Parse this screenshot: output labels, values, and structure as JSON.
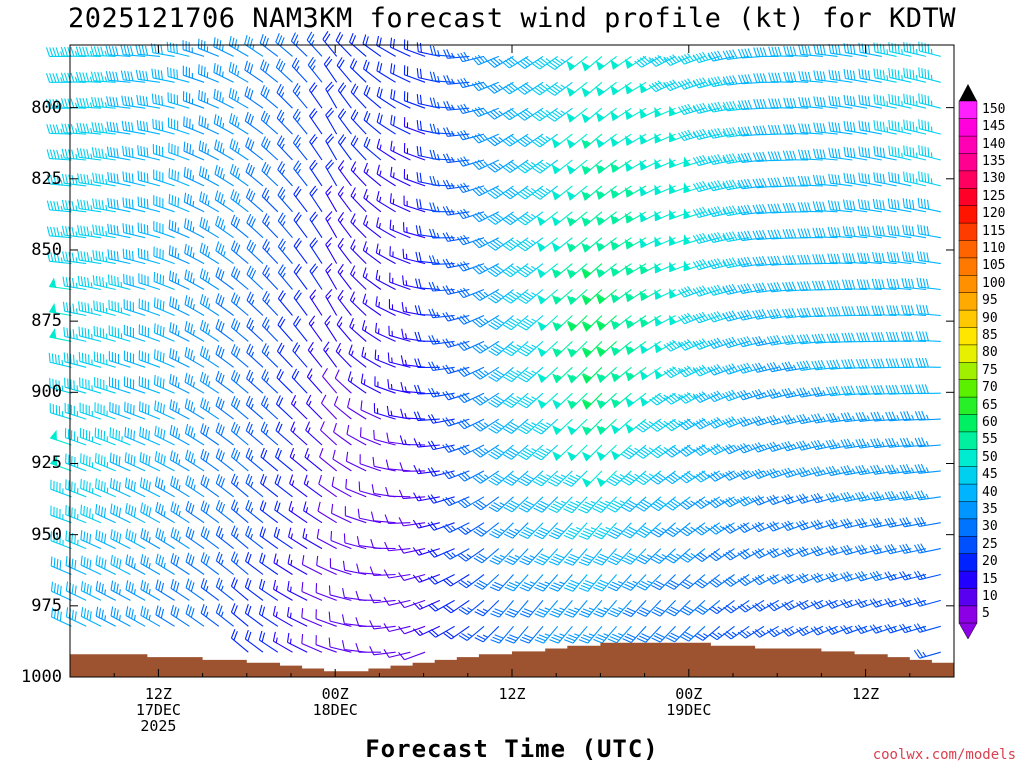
{
  "chart_data": {
    "type": "wind_barb_time_height",
    "title": "2025121706 NAM3KM forecast wind profile (kt) for KDTW",
    "xlabel": "Forecast Time (UTC)",
    "ylabel": "",
    "ylim": [
      1000,
      778
    ],
    "y_ticks": [
      "800",
      "825",
      "850",
      "875",
      "900",
      "925",
      "950",
      "975",
      "1000"
    ],
    "x_ticks": [
      {
        "hour": 6,
        "line1": "12Z",
        "line2": "17DEC",
        "line3": "2025"
      },
      {
        "hour": 18,
        "line1": "00Z",
        "line2": "18DEC",
        "line3": ""
      },
      {
        "hour": 30,
        "line1": "12Z",
        "line2": "",
        "line3": ""
      },
      {
        "hour": 42,
        "line1": "00Z",
        "line2": "19DEC",
        "line3": ""
      },
      {
        "hour": 54,
        "line1": "12Z",
        "line2": "",
        "line3": ""
      }
    ],
    "xlim_hours": [
      0,
      60
    ],
    "colorbar": {
      "values": [
        5,
        10,
        15,
        20,
        25,
        30,
        35,
        40,
        45,
        50,
        55,
        60,
        65,
        70,
        75,
        80,
        85,
        90,
        95,
        100,
        105,
        110,
        115,
        120,
        125,
        130,
        135,
        140,
        145,
        150
      ],
      "labels": [
        "5",
        "10",
        "15",
        "20",
        "25",
        "30",
        "35",
        "40",
        "45",
        "50",
        "55",
        "60",
        "65",
        "70",
        "75",
        "80",
        "85",
        "90",
        "95",
        "100",
        "105",
        "110",
        "115",
        "120",
        "125",
        "130",
        "135",
        "140",
        "145",
        "150"
      ],
      "colors": [
        "#8c00e6",
        "#5a00f0",
        "#2200ff",
        "#0022ff",
        "#0050ff",
        "#0074ff",
        "#0096ff",
        "#00b4ff",
        "#00d0f0",
        "#00ecd0",
        "#00f0a0",
        "#00f064",
        "#28f028",
        "#5af000",
        "#a0f000",
        "#e6f000",
        "#ffe600",
        "#ffc800",
        "#ffaa00",
        "#ff9000",
        "#ff7800",
        "#ff6400",
        "#ff3c00",
        "#ff1400",
        "#ff0028",
        "#ff0060",
        "#ff0090",
        "#ff00b4",
        "#ff00dc",
        "#ff20ff"
      ]
    },
    "surface_pressure": [
      992,
      992,
      992,
      992,
      992,
      992,
      992,
      993,
      993,
      993,
      993,
      993,
      994,
      994,
      994,
      994,
      995,
      995,
      995,
      996,
      996,
      997,
      997,
      998,
      998,
      998,
      998,
      997,
      997,
      996,
      996,
      995,
      995,
      994,
      994,
      993,
      993,
      992,
      992,
      992,
      991,
      991,
      991,
      990,
      990,
      989,
      989,
      989,
      988,
      988,
      988,
      988,
      988,
      988,
      988,
      988,
      988,
      988,
      989,
      989,
      989,
      989,
      990,
      990,
      990,
      990,
      990,
      990,
      991,
      991,
      991,
      992,
      992,
      992,
      993,
      993,
      994,
      994,
      995,
      995
    ],
    "wind_speed_kt": {
      "levels": [
        780,
        800,
        825,
        850,
        875,
        900,
        925,
        950,
        975
      ],
      "hours": [
        0,
        6,
        12,
        18,
        24,
        30,
        36,
        42,
        48,
        54,
        60
      ],
      "values": [
        [
          45,
          40,
          35,
          22,
          20,
          35,
          50,
          45,
          38,
          42,
          45
        ],
        [
          45,
          40,
          34,
          20,
          18,
          36,
          52,
          48,
          40,
          42,
          44
        ],
        [
          46,
          40,
          33,
          18,
          16,
          38,
          55,
          50,
          40,
          42,
          43
        ],
        [
          47,
          40,
          32,
          16,
          14,
          40,
          58,
          50,
          40,
          41,
          42
        ],
        [
          48,
          40,
          30,
          14,
          14,
          40,
          62,
          48,
          38,
          40,
          40
        ],
        [
          47,
          40,
          30,
          12,
          14,
          40,
          58,
          45,
          36,
          38,
          38
        ],
        [
          48,
          40,
          28,
          10,
          12,
          38,
          50,
          40,
          34,
          35,
          35
        ],
        [
          45,
          38,
          26,
          10,
          12,
          34,
          44,
          35,
          30,
          30,
          30
        ],
        [
          40,
          34,
          22,
          10,
          12,
          30,
          35,
          28,
          26,
          26,
          25
        ]
      ]
    },
    "wind_dir_deg": {
      "levels": [
        780,
        800,
        825,
        850,
        875,
        900,
        925,
        950,
        975
      ],
      "hours": [
        0,
        6,
        12,
        18,
        24,
        30,
        36,
        42,
        48,
        54,
        60
      ],
      "values": [
        [
          270,
          275,
          300,
          320,
          290,
          240,
          230,
          245,
          270,
          280,
          285
        ],
        [
          270,
          280,
          300,
          330,
          290,
          240,
          230,
          250,
          270,
          280,
          285
        ],
        [
          275,
          285,
          305,
          330,
          290,
          235,
          230,
          250,
          265,
          280,
          285
        ],
        [
          275,
          285,
          310,
          330,
          285,
          235,
          230,
          250,
          265,
          275,
          280
        ],
        [
          280,
          290,
          310,
          330,
          280,
          230,
          225,
          245,
          260,
          270,
          275
        ],
        [
          285,
          290,
          310,
          320,
          275,
          230,
          225,
          240,
          255,
          265,
          270
        ],
        [
          290,
          295,
          310,
          310,
          270,
          230,
          225,
          235,
          250,
          260,
          265
        ],
        [
          290,
          300,
          310,
          300,
          260,
          225,
          220,
          230,
          245,
          255,
          260
        ],
        [
          295,
          300,
          310,
          290,
          250,
          220,
          220,
          225,
          240,
          250,
          255
        ]
      ]
    }
  },
  "credit": "coolwx.com/models"
}
